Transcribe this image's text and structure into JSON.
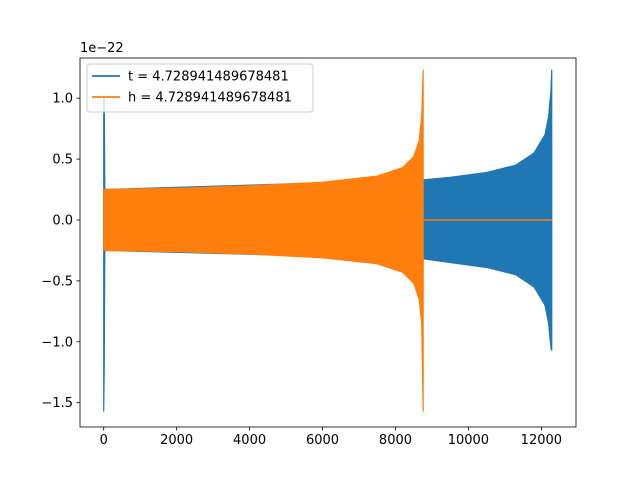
{
  "chart_data": {
    "type": "line",
    "title": "",
    "xlabel": "",
    "ylabel": "",
    "offset_text": "1e−22",
    "xlim": [
      -650,
      12950
    ],
    "ylim": [
      -1.7,
      1.33
    ],
    "grid": false,
    "legend_position": "top-left",
    "x_ticks": [
      0,
      2000,
      4000,
      6000,
      8000,
      10000,
      12000
    ],
    "x_tick_labels": [
      "0",
      "2000",
      "4000",
      "6000",
      "8000",
      "10000",
      "12000"
    ],
    "y_ticks": [
      -1.5,
      -1.0,
      -0.5,
      0.0,
      0.5,
      1.0
    ],
    "y_tick_labels": [
      "−1.5",
      "−1.0",
      "−0.5",
      "0.0",
      "0.5",
      "1.0"
    ],
    "series": [
      {
        "name": "t = 4.728941489678481",
        "color": "#1f77b4",
        "envelope": {
          "x": [
            0,
            15,
            30,
            60,
            8780,
            9500,
            10500,
            11300,
            11800,
            12100,
            12200,
            12260,
            12285
          ],
          "upper": [
            1.0,
            1.02,
            0.26,
            0.25,
            0.33,
            0.35,
            0.39,
            0.45,
            0.55,
            0.7,
            0.85,
            1.05,
            1.23
          ],
          "lower": [
            -1.57,
            -1.2,
            -0.26,
            -0.25,
            -0.32,
            -0.35,
            -0.39,
            -0.45,
            -0.55,
            -0.7,
            -0.85,
            -1.05,
            -1.07
          ]
        }
      },
      {
        "name": "h = 4.728941489678481",
        "color": "#ff7f0e",
        "envelope": {
          "x": [
            0,
            2000,
            4000,
            6000,
            7500,
            8200,
            8500,
            8650,
            8720,
            8760
          ],
          "upper": [
            0.25,
            0.26,
            0.28,
            0.31,
            0.36,
            0.43,
            0.52,
            0.65,
            0.85,
            1.23
          ],
          "lower": [
            -0.25,
            -0.26,
            -0.28,
            -0.31,
            -0.36,
            -0.43,
            -0.52,
            -0.65,
            -0.85,
            -1.57
          ]
        },
        "flat_after": {
          "x": [
            8780,
            12285
          ],
          "y": 0.0
        }
      }
    ]
  }
}
